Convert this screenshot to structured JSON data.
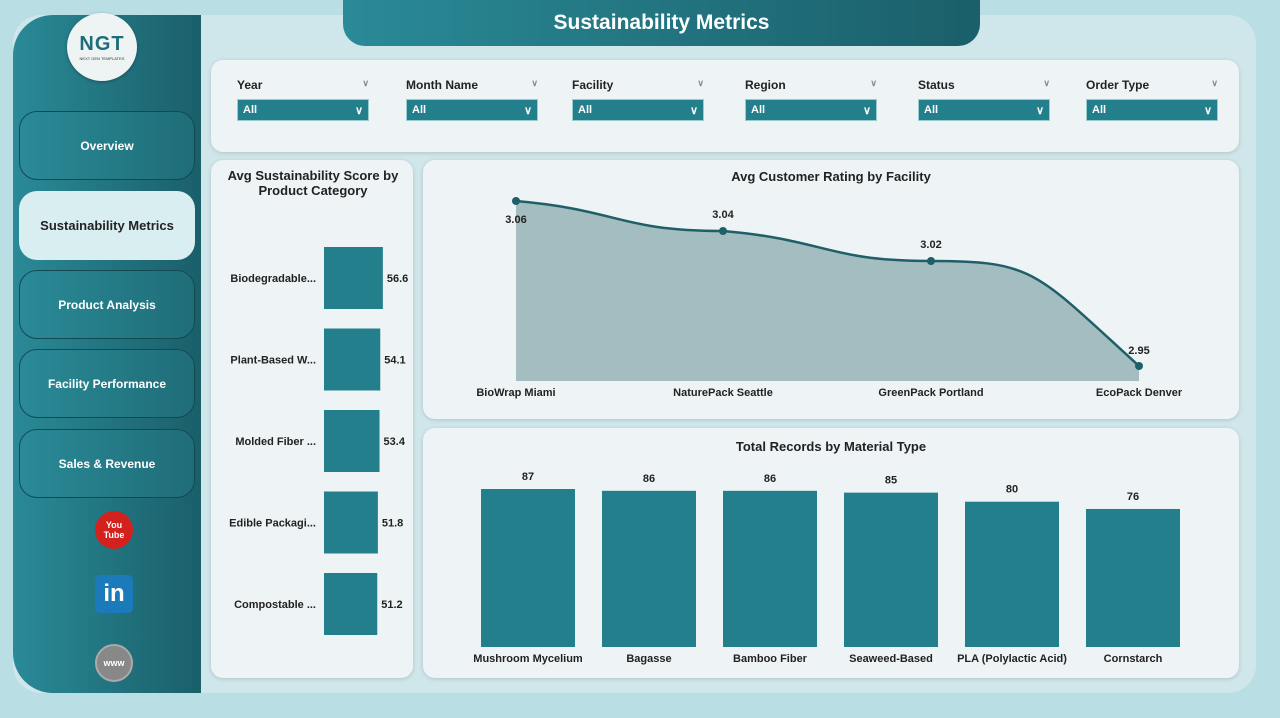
{
  "title": "Sustainability Metrics",
  "logo": {
    "text": "NGT",
    "subtitle": "NEXT GEN TEMPLATES"
  },
  "nav": [
    {
      "label": "Overview"
    },
    {
      "label": "Sustainability Metrics",
      "active": true
    },
    {
      "label": "Product Analysis"
    },
    {
      "label": "Facility Performance"
    },
    {
      "label": "Sales & Revenue"
    }
  ],
  "social": {
    "youtube": "You Tube",
    "linkedin": "in",
    "web": "www"
  },
  "filters": [
    {
      "label": "Year",
      "value": "All"
    },
    {
      "label": "Month Name",
      "value": "All"
    },
    {
      "label": "Facility",
      "value": "All"
    },
    {
      "label": "Region",
      "value": "All"
    },
    {
      "label": "Status",
      "value": "All"
    },
    {
      "label": "Order Type",
      "value": "All"
    }
  ],
  "colors": {
    "accent": "#237f8b",
    "area": "#9bb7bb",
    "line": "#1f5f68"
  },
  "chart_data": [
    {
      "type": "bar",
      "orientation": "horizontal",
      "title": "Avg Sustainability Score by Product Category",
      "categories": [
        "Biodegradable...",
        "Plant-Based W...",
        "Molded Fiber ...",
        "Edible Packagi...",
        "Compostable ..."
      ],
      "values": [
        56.6,
        54.1,
        53.4,
        51.8,
        51.2
      ]
    },
    {
      "type": "area",
      "title": "Avg Customer Rating by Facility",
      "categories": [
        "BioWrap Miami",
        "NaturePack Seattle",
        "GreenPack Portland",
        "EcoPack Denver"
      ],
      "values": [
        3.06,
        3.04,
        3.02,
        2.95
      ],
      "labels": [
        "3.06",
        "3.04",
        "3.02",
        "2.95"
      ],
      "ylim": [
        2.94,
        3.06
      ]
    },
    {
      "type": "bar",
      "title": "Total Records by Material Type",
      "categories": [
        "Mushroom Mycelium",
        "Bagasse",
        "Bamboo Fiber",
        "Seaweed-Based",
        "PLA (Polylactic Acid)",
        "Cornstarch"
      ],
      "values": [
        87,
        86,
        86,
        85,
        80,
        76
      ],
      "ylim": [
        0,
        87
      ]
    }
  ]
}
